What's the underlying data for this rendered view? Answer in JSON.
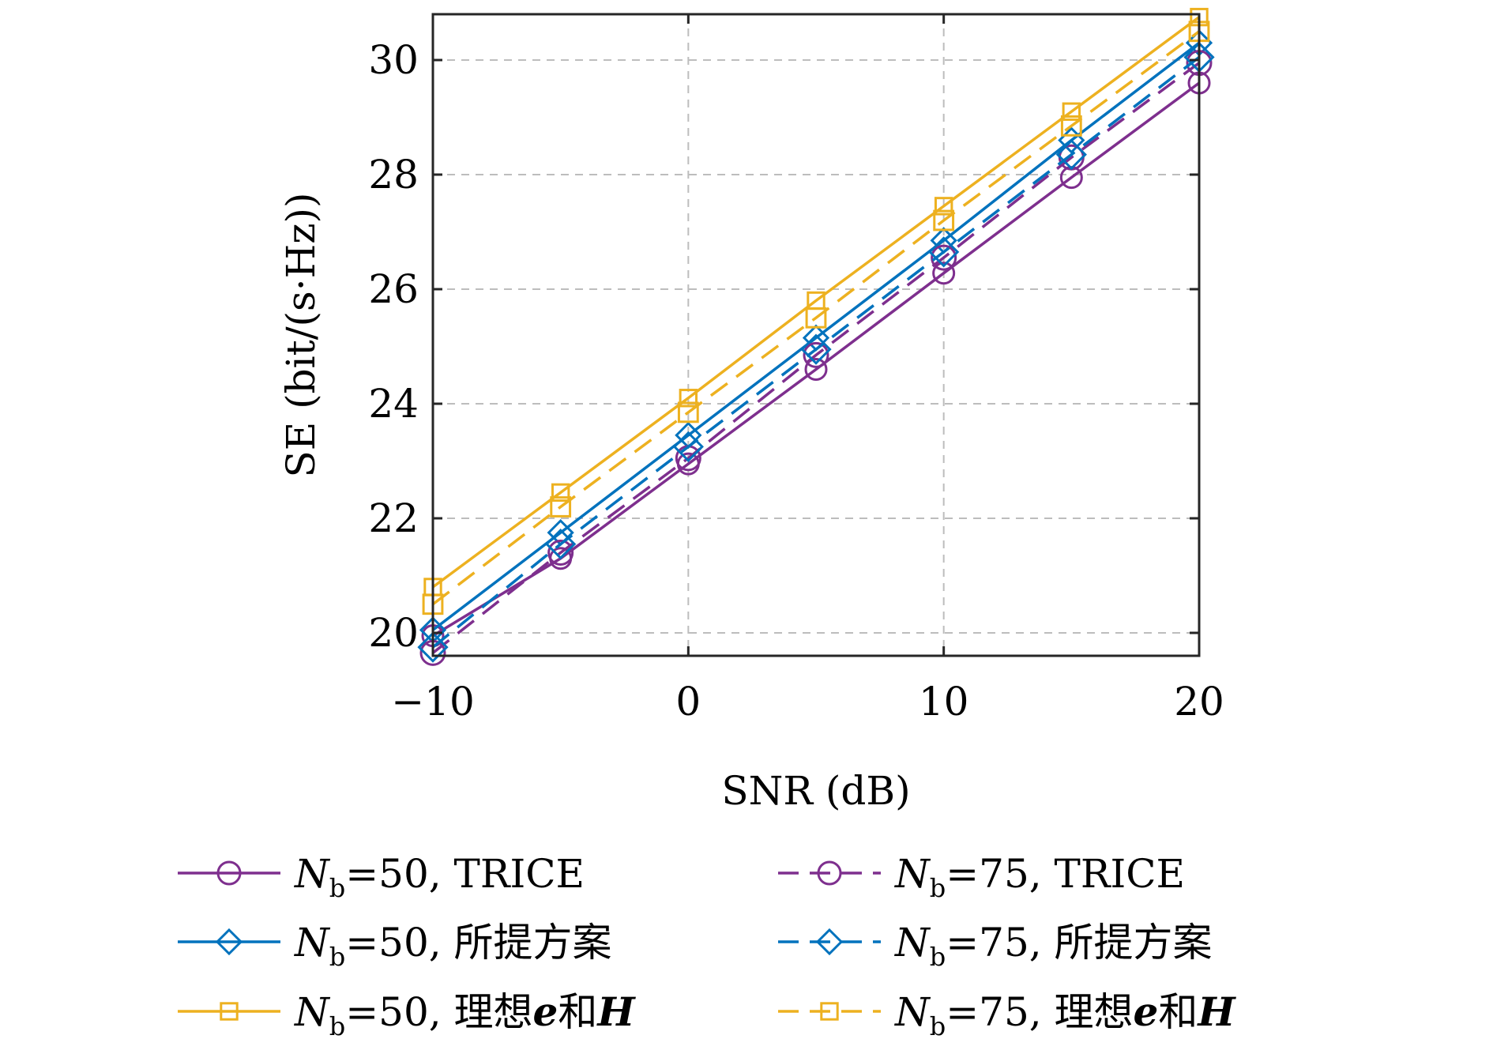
{
  "chart_data": {
    "type": "line",
    "xlabel": "SNR (dB)",
    "ylabel": "SE (bit/(s·Hz))",
    "xlim": [
      -10,
      20
    ],
    "ylim": [
      19.6,
      30.8
    ],
    "xticks": [
      -10,
      0,
      10,
      20
    ],
    "xtick_labels": [
      "−10",
      "0",
      "10",
      "20"
    ],
    "yticks": [
      20,
      22,
      24,
      26,
      28,
      30
    ],
    "ytick_labels": [
      "20",
      "22",
      "24",
      "26",
      "28",
      "30"
    ],
    "grid": true,
    "legend_placement": "bottom, outside, two columns",
    "x": [
      -10,
      -5,
      0,
      5,
      10,
      15,
      20
    ],
    "series": [
      {
        "name_math": "N",
        "name_sub": "b",
        "name_rest": "=50, TRICE",
        "color": "#7E2F8E",
        "dash": "solid",
        "marker": "circle",
        "values": [
          19.95,
          21.3,
          22.95,
          24.6,
          26.28,
          27.95,
          29.6
        ]
      },
      {
        "name_math": "N",
        "name_sub": "b",
        "name_rest": "=50, 所提方案",
        "color": "#0072BD",
        "dash": "solid",
        "marker": "diamond",
        "values": [
          20.05,
          21.75,
          23.45,
          25.15,
          26.85,
          28.6,
          30.3
        ]
      },
      {
        "name_math": "N",
        "name_sub": "b",
        "name_rest": "=50, 理想",
        "name_e": "e",
        "name_mid": "和",
        "name_h": "H",
        "color": "#EDB120",
        "dash": "solid",
        "marker": "square",
        "values": [
          20.8,
          22.45,
          24.1,
          25.8,
          27.45,
          29.1,
          30.75
        ]
      },
      {
        "name_math": "N",
        "name_sub": "b",
        "name_rest": "=75, TRICE",
        "color": "#7E2F8E",
        "dash": "dashed",
        "marker": "circle",
        "values": [
          19.65,
          21.4,
          23.05,
          24.85,
          26.55,
          28.3,
          29.95
        ]
      },
      {
        "name_math": "N",
        "name_sub": "b",
        "name_rest": "=75, 所提方案",
        "color": "#0072BD",
        "dash": "dashed",
        "marker": "diamond",
        "values": [
          19.75,
          21.55,
          23.25,
          24.95,
          26.65,
          28.35,
          30.05
        ]
      },
      {
        "name_math": "N",
        "name_sub": "b",
        "name_rest": "=75, 理想",
        "name_e": "e",
        "name_mid": "和",
        "name_h": "H",
        "color": "#EDB120",
        "dash": "dashed",
        "marker": "square",
        "values": [
          20.5,
          22.2,
          23.85,
          25.5,
          27.2,
          28.85,
          30.5
        ]
      }
    ]
  }
}
